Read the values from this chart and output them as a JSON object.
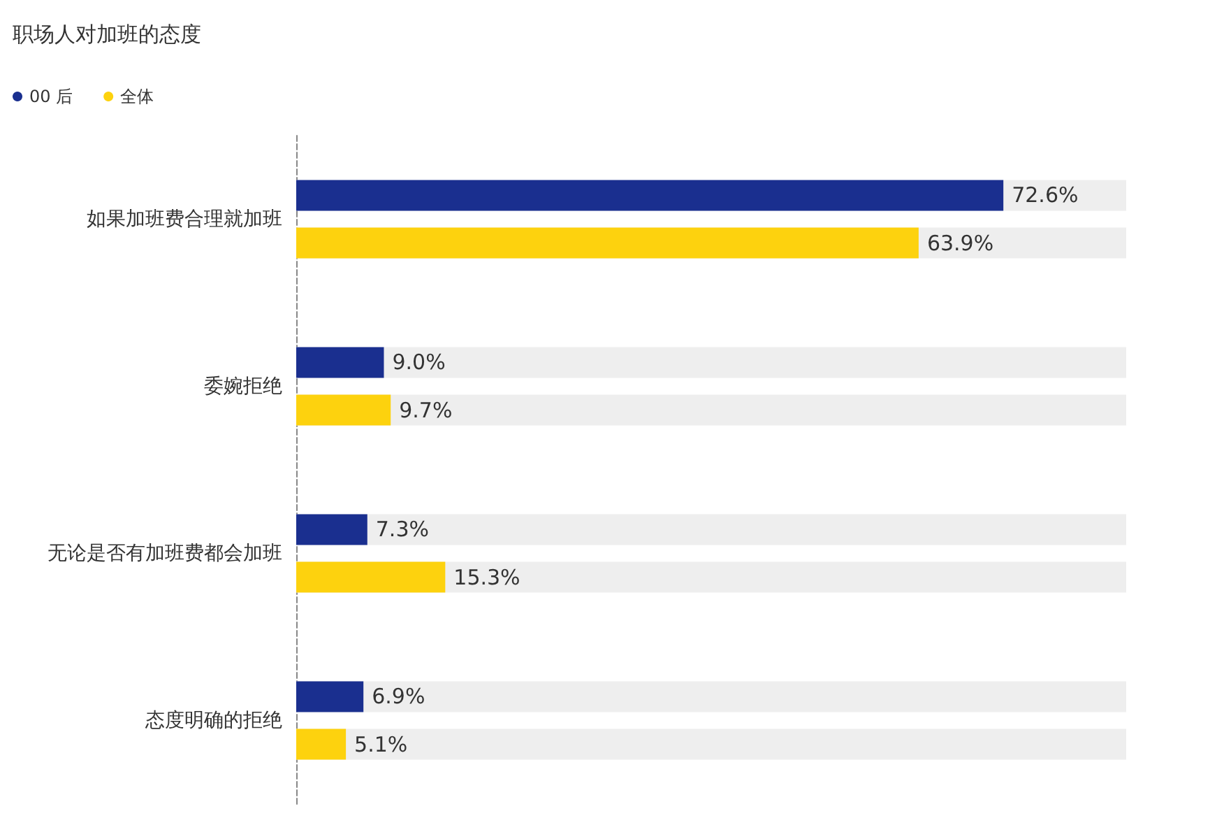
{
  "chart_data": {
    "type": "bar",
    "orientation": "horizontal",
    "title": "职场人对加班的态度",
    "legend": "top left",
    "grid": false,
    "categories": [
      "如果加班费合理就加班",
      "委婉拒绝",
      "无论是否有加班费都会加班",
      "态度明确的拒绝"
    ],
    "series": [
      {
        "name": "00 后",
        "color": "#1a2f8f",
        "values": [
          72.6,
          9.0,
          7.3,
          6.9
        ],
        "value_labels": [
          "72.6%",
          "9.0%",
          "7.3%",
          "6.9%"
        ]
      },
      {
        "name": "全体",
        "color": "#fdd20e",
        "values": [
          63.9,
          9.7,
          15.3,
          5.1
        ],
        "value_labels": [
          "63.9%",
          "9.7%",
          "15.3%",
          "5.1%"
        ]
      }
    ]
  }
}
